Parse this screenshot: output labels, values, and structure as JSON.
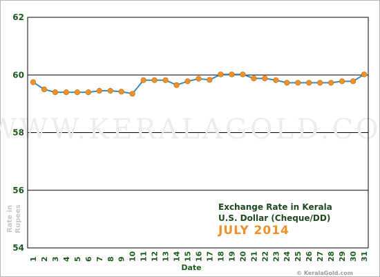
{
  "chart_data": {
    "type": "line",
    "title": "Exchange Rate in Kerala",
    "subtitle": "U.S. Dollar (Cheque/DD)",
    "period": "JULY 2014",
    "xlabel": "Date",
    "ylabel_line1": "Rate in",
    "ylabel_line2": "Rupees",
    "ylim": [
      54,
      62
    ],
    "yticks": [
      "54",
      "56",
      "58",
      "60",
      "62"
    ],
    "x": [
      "1",
      "2",
      "3",
      "4",
      "5",
      "6",
      "7",
      "8",
      "9",
      "10",
      "11",
      "12",
      "13",
      "14",
      "15",
      "16",
      "17",
      "18",
      "19",
      "20",
      "21",
      "22",
      "23",
      "24",
      "25",
      "26",
      "27",
      "28",
      "29",
      "30",
      "31"
    ],
    "series": [
      {
        "values": [
          59.75,
          59.5,
          59.4,
          59.4,
          59.4,
          59.4,
          59.45,
          59.45,
          59.42,
          59.35,
          59.82,
          59.82,
          59.82,
          59.65,
          59.78,
          59.87,
          59.83,
          60.02,
          60.02,
          60.02,
          59.88,
          59.88,
          59.82,
          59.73,
          59.73,
          59.73,
          59.73,
          59.73,
          59.78,
          59.78,
          60.02
        ]
      }
    ],
    "line_color": "#3a8ab0",
    "marker_color": "#f0902a",
    "grid": true
  },
  "watermark": "WWW.KERALAGOLD.COM",
  "credit": "© KeralaGold.com"
}
